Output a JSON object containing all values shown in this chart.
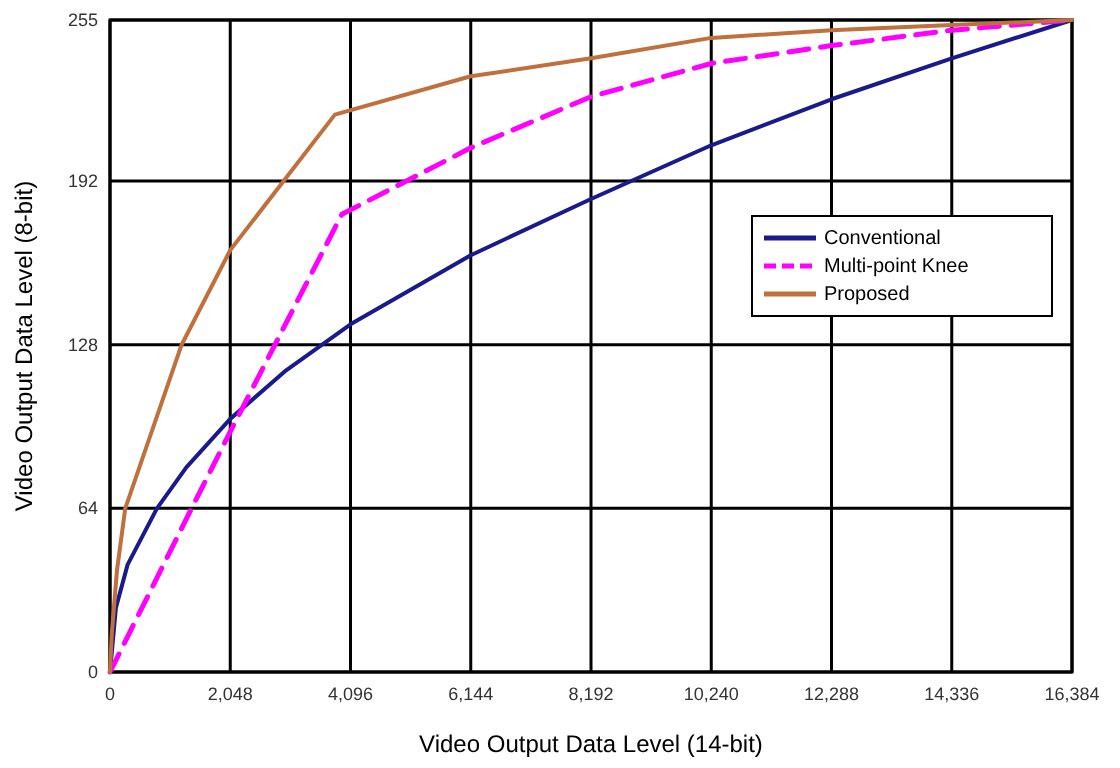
{
  "chart_data": {
    "type": "line",
    "xlabel": "Video Output Data Level (14-bit)",
    "ylabel": "Video Output Data Level (8-bit)",
    "xlim": [
      0,
      16384
    ],
    "ylim": [
      0,
      255
    ],
    "xticks": [
      0,
      {
        "value": 2048,
        "label": "2,048"
      },
      {
        "value": 4096,
        "label": "4,096"
      },
      {
        "value": 6144,
        "label": "6,144"
      },
      {
        "value": 8192,
        "label": "8,192"
      },
      {
        "value": 10240,
        "label": "10,240"
      },
      {
        "value": 12288,
        "label": "12,288"
      },
      {
        "value": 14336,
        "label": "14,336"
      },
      {
        "value": 16384,
        "label": "16,384"
      }
    ],
    "yticks": [
      0,
      64,
      128,
      192,
      255
    ],
    "grid": true,
    "legend": "right",
    "marker": "none",
    "series": [
      {
        "name": "Conventional",
        "color": "#1a1a8c",
        "line_style": "solid",
        "x": [
          0,
          100,
          300,
          800,
          1300,
          2048,
          3000,
          4096,
          6144,
          8192,
          10240,
          12288,
          14336,
          16384
        ],
        "values": [
          0,
          25,
          42,
          64,
          80,
          99,
          118,
          136,
          163,
          185,
          206,
          224,
          240,
          255
        ]
      },
      {
        "name": "Multi-point Knee",
        "color": "#ff00ff",
        "line_style": "dashed",
        "x": [
          0,
          1390,
          2048,
          3950,
          6144,
          8192,
          10240,
          12288,
          14336,
          16384
        ],
        "values": [
          0,
          64,
          94,
          179,
          205,
          225,
          238,
          245,
          251,
          255
        ]
      },
      {
        "name": "Proposed",
        "color": "#c0703c",
        "line_style": "solid",
        "x": [
          0,
          30,
          120,
          260,
          1220,
          2048,
          3830,
          6144,
          8192,
          10240,
          12288,
          14336,
          16384
        ],
        "values": [
          0,
          15,
          40,
          64,
          128,
          165,
          218,
          233,
          240,
          248,
          251,
          253,
          255
        ]
      }
    ]
  }
}
